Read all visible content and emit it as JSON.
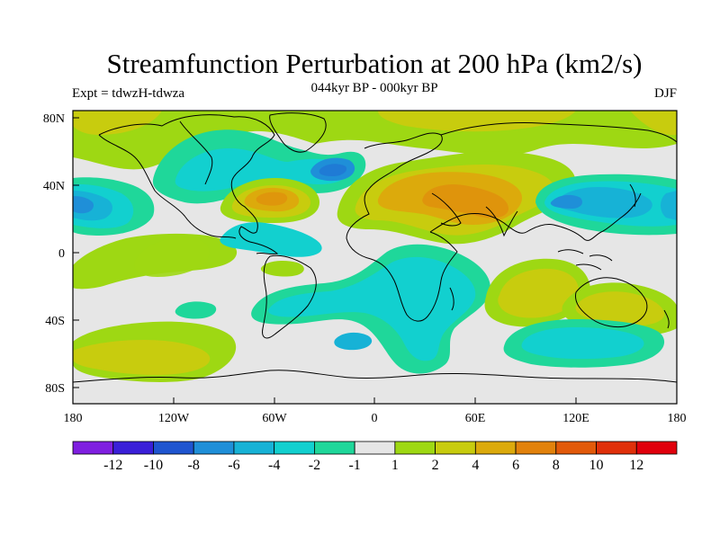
{
  "chart_data": {
    "type": "heatmap",
    "projection": "cylindrical-equidistant",
    "title": "Streamfunction Perturbation at 200 hPa (km2/s)",
    "left_label": "Expt = tdwzH-tdwza",
    "center_label": "044kyr BP - 000kyr BP",
    "right_label": "DJF",
    "lon_range": [
      -180,
      180
    ],
    "lat_range": [
      -90,
      90
    ],
    "x_ticks": [
      "180",
      "120W",
      "60W",
      "0",
      "60E",
      "120E",
      "180"
    ],
    "y_ticks": [
      "80N",
      "40N",
      "0",
      "40S",
      "80S"
    ],
    "colorbar": {
      "levels": [
        "-12",
        "-10",
        "-8",
        "-6",
        "-4",
        "-2",
        "-1",
        "1",
        "2",
        "4",
        "6",
        "8",
        "10",
        "12"
      ],
      "colors": [
        "#7f1fe0",
        "#3a1fd8",
        "#1f55d0",
        "#1f8fd8",
        "#17b2d6",
        "#12d0cf",
        "#1fd79a",
        "#e6e6e6",
        "#9ed813",
        "#c8cc0e",
        "#dcaa0c",
        "#e2820c",
        "#e25a0a",
        "#e0300a",
        "#e0000c"
      ]
    },
    "field_features": [
      {
        "name": "north-pacific-negative",
        "lon": 175,
        "lat": 30,
        "value": -8
      },
      {
        "name": "west-pacific-negative",
        "lon": -172,
        "lat": 30,
        "value": -8
      },
      {
        "name": "west-atlantic-positive",
        "lon": -58,
        "lat": 33,
        "value": 6
      },
      {
        "name": "north-atlantic-negative",
        "lon": -20,
        "lat": 48,
        "value": -6
      },
      {
        "name": "middle-east-positive",
        "lon": 45,
        "lat": 30,
        "value": 6
      },
      {
        "name": "arabian-positive",
        "lon": 65,
        "lat": 22,
        "value": 6
      },
      {
        "name": "arctic-positive",
        "lon": 40,
        "lat": 80,
        "value": 2
      },
      {
        "name": "south-atlantic-negative",
        "lon": 15,
        "lat": -25,
        "value": -2
      },
      {
        "name": "southern-ocean-negative",
        "lon": 100,
        "lat": -55,
        "value": -2
      },
      {
        "name": "indian-ocean-positive",
        "lon": 100,
        "lat": -25,
        "value": 2
      },
      {
        "name": "south-pacific-positive",
        "lon": -150,
        "lat": -60,
        "value": 2
      },
      {
        "name": "australia-positive",
        "lon": 150,
        "lat": -25,
        "value": 2
      }
    ]
  }
}
